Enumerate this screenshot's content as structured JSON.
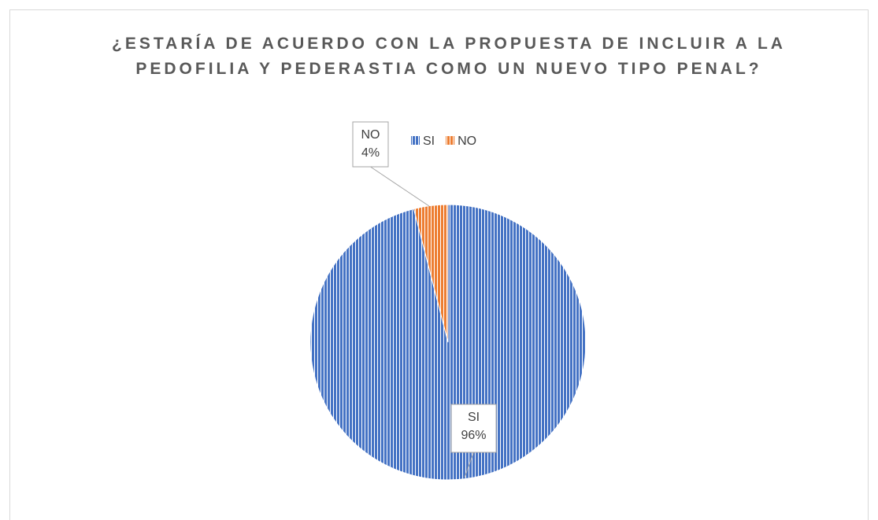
{
  "chart_data": {
    "type": "pie",
    "title": "¿ESTARÍA DE ACUERDO CON LA PROPUESTA DE INCLUIR A LA PEDOFILIA Y PEDERASTIA COMO UN NUEVO TIPO PENAL?",
    "categories": [
      "SI",
      "NO"
    ],
    "values": [
      96,
      4
    ],
    "value_labels": [
      "96%",
      "4%"
    ],
    "colors": [
      "#4472c4",
      "#ed7d31"
    ],
    "legend": "top"
  }
}
